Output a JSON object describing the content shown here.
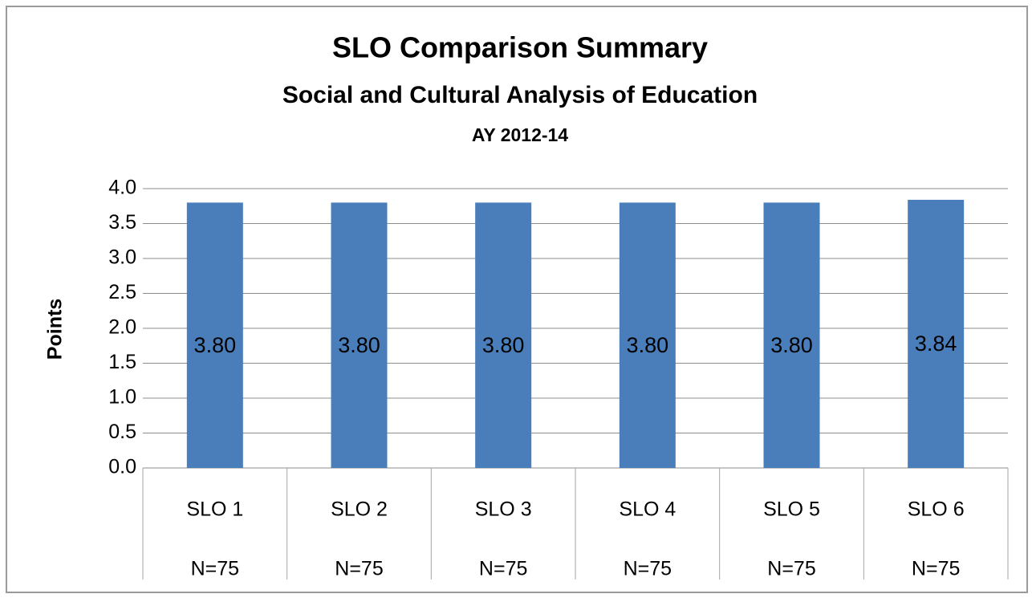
{
  "chart_data": {
    "type": "bar",
    "title": "SLO Comparison Summary",
    "subtitle": "Social and Cultural Analysis of Education",
    "period": "AY 2012-14",
    "y_label": "Points",
    "categories": [
      "SLO 1",
      "SLO 2",
      "SLO 3",
      "SLO 4",
      "SLO 5",
      "SLO 6"
    ],
    "sample_sizes": [
      "N=75",
      "N=75",
      "N=75",
      "N=75",
      "N=75",
      "N=75"
    ],
    "values": [
      3.8,
      3.8,
      3.8,
      3.8,
      3.8,
      3.84
    ],
    "value_labels": [
      "3.80",
      "3.80",
      "3.80",
      "3.80",
      "3.80",
      "3.84"
    ],
    "color": "#4a7ebb",
    "ylim": [
      0,
      4
    ],
    "yticks": [
      {
        "value": 0,
        "label": "0.0"
      },
      {
        "value": 0.5,
        "label": "0.5"
      },
      {
        "value": 1,
        "label": "1.0"
      },
      {
        "value": 1.5,
        "label": "1.5"
      },
      {
        "value": 2,
        "label": "2.0"
      },
      {
        "value": 2.5,
        "label": "2.5"
      },
      {
        "value": 3,
        "label": "3.0"
      },
      {
        "value": 3.5,
        "label": "3.5"
      },
      {
        "value": 4,
        "label": "4.0"
      }
    ],
    "grid": true
  }
}
